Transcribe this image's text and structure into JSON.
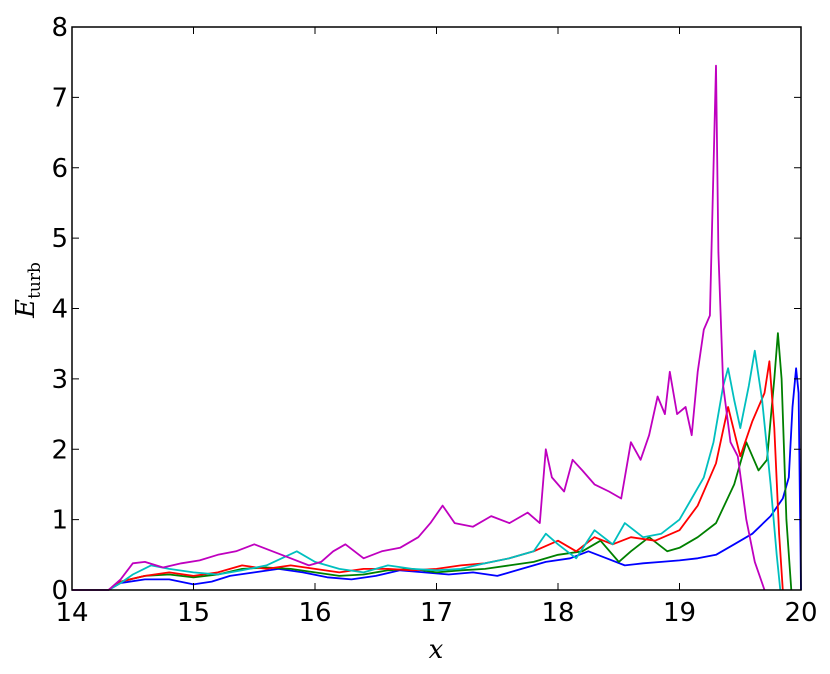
{
  "chart_data": {
    "type": "line",
    "xlabel": "x",
    "ylabel": {
      "main": "E",
      "sub": "turb"
    },
    "xlim": [
      14,
      20
    ],
    "ylim": [
      0,
      8
    ],
    "x_ticks": [
      "14",
      "15",
      "16",
      "17",
      "18",
      "19",
      "20"
    ],
    "y_ticks": [
      "0",
      "1",
      "2",
      "3",
      "4",
      "5",
      "6",
      "7",
      "8"
    ],
    "grid": false,
    "legend": "none",
    "series": [
      {
        "color": "#0000ff",
        "points": [
          [
            14.0,
            0
          ],
          [
            14.3,
            0
          ],
          [
            14.4,
            0.1
          ],
          [
            14.6,
            0.15
          ],
          [
            14.8,
            0.15
          ],
          [
            15.0,
            0.08
          ],
          [
            15.15,
            0.12
          ],
          [
            15.3,
            0.2
          ],
          [
            15.5,
            0.25
          ],
          [
            15.7,
            0.3
          ],
          [
            15.9,
            0.25
          ],
          [
            16.1,
            0.18
          ],
          [
            16.3,
            0.15
          ],
          [
            16.5,
            0.2
          ],
          [
            16.7,
            0.28
          ],
          [
            16.9,
            0.25
          ],
          [
            17.1,
            0.22
          ],
          [
            17.3,
            0.25
          ],
          [
            17.5,
            0.2
          ],
          [
            17.7,
            0.3
          ],
          [
            17.9,
            0.4
          ],
          [
            18.1,
            0.45
          ],
          [
            18.25,
            0.55
          ],
          [
            18.4,
            0.45
          ],
          [
            18.55,
            0.35
          ],
          [
            18.7,
            0.38
          ],
          [
            18.85,
            0.4
          ],
          [
            19.0,
            0.42
          ],
          [
            19.15,
            0.45
          ],
          [
            19.3,
            0.5
          ],
          [
            19.45,
            0.65
          ],
          [
            19.6,
            0.8
          ],
          [
            19.75,
            1.05
          ],
          [
            19.85,
            1.3
          ],
          [
            19.9,
            1.6
          ],
          [
            19.93,
            2.6
          ],
          [
            19.96,
            3.15
          ],
          [
            19.98,
            2.8
          ],
          [
            20.0,
            0
          ]
        ]
      },
      {
        "color": "#008000",
        "points": [
          [
            14.0,
            0
          ],
          [
            14.3,
            0
          ],
          [
            14.4,
            0.12
          ],
          [
            14.6,
            0.2
          ],
          [
            14.8,
            0.22
          ],
          [
            15.0,
            0.18
          ],
          [
            15.2,
            0.22
          ],
          [
            15.4,
            0.3
          ],
          [
            15.6,
            0.32
          ],
          [
            15.8,
            0.3
          ],
          [
            16.0,
            0.25
          ],
          [
            16.2,
            0.2
          ],
          [
            16.4,
            0.22
          ],
          [
            16.6,
            0.28
          ],
          [
            16.8,
            0.3
          ],
          [
            17.0,
            0.25
          ],
          [
            17.2,
            0.28
          ],
          [
            17.4,
            0.3
          ],
          [
            17.6,
            0.35
          ],
          [
            17.8,
            0.4
          ],
          [
            18.0,
            0.5
          ],
          [
            18.2,
            0.55
          ],
          [
            18.35,
            0.7
          ],
          [
            18.5,
            0.4
          ],
          [
            18.6,
            0.55
          ],
          [
            18.75,
            0.75
          ],
          [
            18.9,
            0.55
          ],
          [
            19.0,
            0.6
          ],
          [
            19.15,
            0.75
          ],
          [
            19.3,
            0.95
          ],
          [
            19.45,
            1.5
          ],
          [
            19.55,
            2.1
          ],
          [
            19.65,
            1.7
          ],
          [
            19.72,
            1.85
          ],
          [
            19.78,
            3.0
          ],
          [
            19.81,
            3.65
          ],
          [
            19.84,
            3.0
          ],
          [
            19.88,
            1.0
          ],
          [
            19.92,
            0
          ]
        ]
      },
      {
        "color": "#ff0000",
        "points": [
          [
            14.0,
            0
          ],
          [
            14.3,
            0
          ],
          [
            14.4,
            0.12
          ],
          [
            14.6,
            0.2
          ],
          [
            14.8,
            0.25
          ],
          [
            15.0,
            0.2
          ],
          [
            15.2,
            0.25
          ],
          [
            15.4,
            0.35
          ],
          [
            15.6,
            0.3
          ],
          [
            15.8,
            0.35
          ],
          [
            16.0,
            0.3
          ],
          [
            16.2,
            0.25
          ],
          [
            16.4,
            0.3
          ],
          [
            16.6,
            0.3
          ],
          [
            16.8,
            0.28
          ],
          [
            17.0,
            0.3
          ],
          [
            17.2,
            0.35
          ],
          [
            17.4,
            0.38
          ],
          [
            17.6,
            0.45
          ],
          [
            17.8,
            0.55
          ],
          [
            18.0,
            0.7
          ],
          [
            18.15,
            0.55
          ],
          [
            18.3,
            0.75
          ],
          [
            18.45,
            0.65
          ],
          [
            18.6,
            0.75
          ],
          [
            18.8,
            0.7
          ],
          [
            19.0,
            0.85
          ],
          [
            19.15,
            1.2
          ],
          [
            19.3,
            1.8
          ],
          [
            19.4,
            2.6
          ],
          [
            19.5,
            1.9
          ],
          [
            19.6,
            2.4
          ],
          [
            19.7,
            2.8
          ],
          [
            19.74,
            3.25
          ],
          [
            19.78,
            2.3
          ],
          [
            19.82,
            0.8
          ],
          [
            19.85,
            0
          ]
        ]
      },
      {
        "color": "#00bfbf",
        "points": [
          [
            14.0,
            0
          ],
          [
            14.3,
            0
          ],
          [
            14.4,
            0.1
          ],
          [
            14.5,
            0.22
          ],
          [
            14.65,
            0.35
          ],
          [
            14.8,
            0.3
          ],
          [
            15.0,
            0.25
          ],
          [
            15.2,
            0.22
          ],
          [
            15.4,
            0.28
          ],
          [
            15.6,
            0.35
          ],
          [
            15.85,
            0.55
          ],
          [
            16.0,
            0.4
          ],
          [
            16.2,
            0.3
          ],
          [
            16.4,
            0.25
          ],
          [
            16.6,
            0.35
          ],
          [
            16.8,
            0.3
          ],
          [
            17.0,
            0.28
          ],
          [
            17.2,
            0.3
          ],
          [
            17.4,
            0.38
          ],
          [
            17.6,
            0.45
          ],
          [
            17.8,
            0.55
          ],
          [
            17.9,
            0.8
          ],
          [
            18.0,
            0.65
          ],
          [
            18.15,
            0.45
          ],
          [
            18.3,
            0.85
          ],
          [
            18.45,
            0.65
          ],
          [
            18.55,
            0.95
          ],
          [
            18.7,
            0.75
          ],
          [
            18.85,
            0.8
          ],
          [
            19.0,
            1.0
          ],
          [
            19.1,
            1.3
          ],
          [
            19.2,
            1.6
          ],
          [
            19.28,
            2.1
          ],
          [
            19.36,
            2.9
          ],
          [
            19.4,
            3.15
          ],
          [
            19.45,
            2.7
          ],
          [
            19.5,
            2.3
          ],
          [
            19.57,
            2.9
          ],
          [
            19.62,
            3.4
          ],
          [
            19.68,
            2.7
          ],
          [
            19.75,
            1.5
          ],
          [
            19.8,
            0.5
          ],
          [
            19.83,
            0
          ]
        ]
      },
      {
        "color": "#bf00bf",
        "points": [
          [
            14.0,
            0
          ],
          [
            14.3,
            0
          ],
          [
            14.4,
            0.15
          ],
          [
            14.5,
            0.38
          ],
          [
            14.6,
            0.4
          ],
          [
            14.75,
            0.32
          ],
          [
            14.9,
            0.38
          ],
          [
            15.05,
            0.42
          ],
          [
            15.2,
            0.5
          ],
          [
            15.35,
            0.55
          ],
          [
            15.5,
            0.65
          ],
          [
            15.65,
            0.55
          ],
          [
            15.8,
            0.45
          ],
          [
            15.95,
            0.35
          ],
          [
            16.05,
            0.4
          ],
          [
            16.15,
            0.55
          ],
          [
            16.25,
            0.65
          ],
          [
            16.4,
            0.45
          ],
          [
            16.55,
            0.55
          ],
          [
            16.7,
            0.6
          ],
          [
            16.85,
            0.75
          ],
          [
            16.95,
            0.95
          ],
          [
            17.05,
            1.2
          ],
          [
            17.15,
            0.95
          ],
          [
            17.3,
            0.9
          ],
          [
            17.45,
            1.05
          ],
          [
            17.6,
            0.95
          ],
          [
            17.75,
            1.1
          ],
          [
            17.85,
            0.95
          ],
          [
            17.9,
            2.0
          ],
          [
            17.95,
            1.6
          ],
          [
            18.05,
            1.4
          ],
          [
            18.12,
            1.85
          ],
          [
            18.2,
            1.7
          ],
          [
            18.3,
            1.5
          ],
          [
            18.42,
            1.4
          ],
          [
            18.52,
            1.3
          ],
          [
            18.6,
            2.1
          ],
          [
            18.68,
            1.85
          ],
          [
            18.75,
            2.2
          ],
          [
            18.82,
            2.75
          ],
          [
            18.88,
            2.5
          ],
          [
            18.92,
            3.1
          ],
          [
            18.98,
            2.5
          ],
          [
            19.05,
            2.6
          ],
          [
            19.1,
            2.2
          ],
          [
            19.15,
            3.1
          ],
          [
            19.2,
            3.7
          ],
          [
            19.25,
            3.9
          ],
          [
            19.28,
            6.0
          ],
          [
            19.3,
            7.45
          ],
          [
            19.32,
            4.8
          ],
          [
            19.36,
            2.9
          ],
          [
            19.42,
            2.1
          ],
          [
            19.48,
            1.9
          ],
          [
            19.55,
            1.0
          ],
          [
            19.62,
            0.4
          ],
          [
            19.68,
            0.1
          ],
          [
            19.7,
            0
          ]
        ]
      }
    ]
  }
}
